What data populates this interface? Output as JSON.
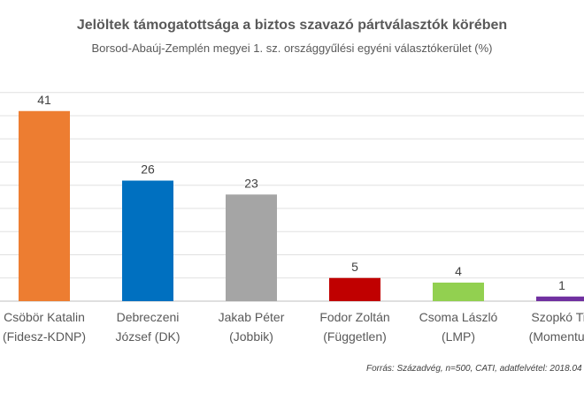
{
  "chart_data": {
    "type": "bar",
    "title": "Jelöltek támogatottsága a biztos szavazó pártválasztók körében",
    "subtitle": "Borsod-Abaúj-Zemplén megyei 1. sz. országgyűlési egyéni választókerület (%)",
    "categories": [
      [
        "Csöbör Katalin",
        "(Fidesz-KDNP)"
      ],
      [
        "Debreczeni",
        "József (DK)"
      ],
      [
        "Jakab Péter",
        "(Jobbik)"
      ],
      [
        "Fodor Zoltán",
        "(Független)"
      ],
      [
        "Csoma László",
        "(LMP)"
      ],
      [
        "Szopkó Tib",
        "(Momentum"
      ]
    ],
    "values": [
      41,
      26,
      23,
      5,
      4,
      1
    ],
    "colors": [
      "#ED7D31",
      "#0070C0",
      "#A5A5A5",
      "#C00000",
      "#92D050",
      "#7030A0"
    ],
    "ylim": [
      0,
      45
    ],
    "grid": true,
    "source": "Forrás: Századvég, n=500, CATI, adatfelvétel: 2018.04"
  }
}
